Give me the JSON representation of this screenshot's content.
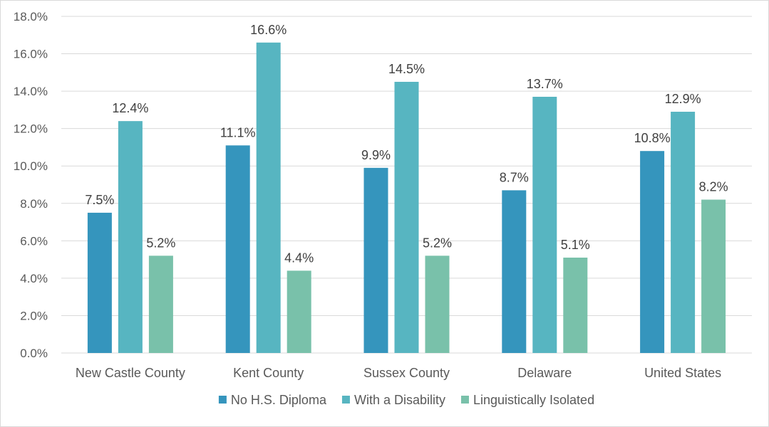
{
  "chart_data": {
    "type": "bar",
    "categories": [
      "New Castle County",
      "Kent County",
      "Sussex County",
      "Delaware",
      "United States"
    ],
    "series": [
      {
        "name": "No H.S. Diploma",
        "values": [
          7.5,
          11.1,
          9.9,
          8.7,
          10.8
        ],
        "labels": [
          "7.5%",
          "11.1%",
          "9.9%",
          "8.7%",
          "10.8%"
        ],
        "color": "#3595bd"
      },
      {
        "name": "With a Disability",
        "values": [
          12.4,
          16.6,
          14.5,
          13.7,
          12.9
        ],
        "labels": [
          "12.4%",
          "16.6%",
          "14.5%",
          "13.7%",
          "12.9%"
        ],
        "color": "#57b5c1"
      },
      {
        "name": "Linguistically Isolated",
        "values": [
          5.2,
          4.4,
          5.2,
          5.1,
          8.2
        ],
        "labels": [
          "5.2%",
          "4.4%",
          "5.2%",
          "5.1%",
          "8.2%"
        ],
        "color": "#79c1aa"
      }
    ],
    "yticks": [
      "0.0%",
      "2.0%",
      "4.0%",
      "6.0%",
      "8.0%",
      "10.0%",
      "12.0%",
      "14.0%",
      "16.0%",
      "18.0%"
    ],
    "ylim": [
      0,
      18
    ],
    "grid": true,
    "legend_position": "bottom"
  }
}
